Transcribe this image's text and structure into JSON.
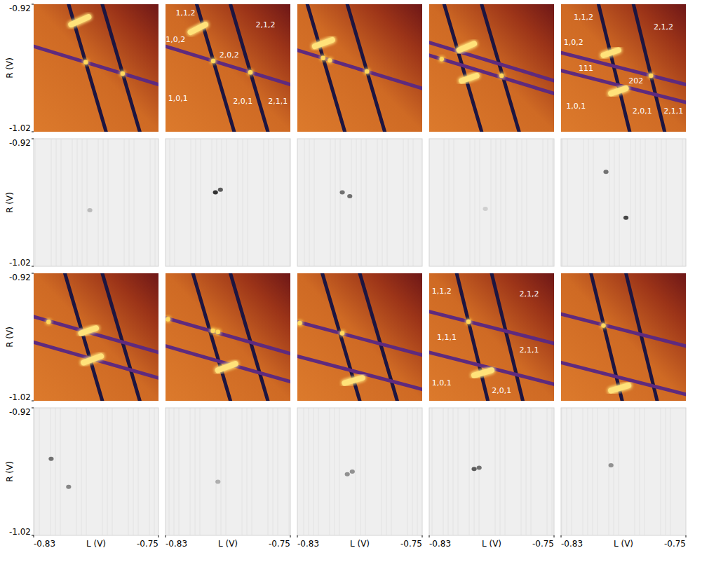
{
  "chart_data": [
    {
      "type": "heatmap",
      "color": "#dc7a2c",
      "xlim": [
        -0.83,
        -0.75
      ],
      "ylim": [
        -1.02,
        -0.92
      ],
      "tick_labels": "y",
      "yticks": [
        -1.02,
        -0.92
      ],
      "ylabel": "R (V)",
      "lines": [
        {
          "x": [
            -0.8076,
            -0.7836
          ],
          "y": [
            -0.92,
            -1.02
          ],
          "color": "#1d1540"
        },
        {
          "x": [
            -0.786,
            -0.762
          ],
          "y": [
            -0.92,
            -1.02
          ],
          "color": "#1d1540"
        },
        {
          "x": [
            -0.83,
            -0.75
          ],
          "y": [
            -0.953,
            -0.983
          ],
          "color": "#5e2a7e"
        }
      ],
      "spots": [
        {
          "x": [
            -0.806,
            -0.7948
          ],
          "y": [
            -0.936,
            -0.93
          ]
        }
      ],
      "dots": {
        "x": [
          -0.7966,
          -0.773
        ],
        "y": [
          -0.9655,
          -0.9744
        ]
      }
    },
    {
      "type": "heatmap",
      "color": "#dc7a2c",
      "xlim": [
        -0.83,
        -0.75
      ],
      "ylim": [
        -1.02,
        -0.92
      ],
      "tick_labels": false,
      "lines": [
        {
          "x": [
            -0.81,
            -0.786
          ],
          "y": [
            -0.92,
            -1.02
          ],
          "color": "#1d1540"
        },
        {
          "x": [
            -0.7884,
            -0.7644
          ],
          "y": [
            -0.92,
            -1.02
          ],
          "color": "#1d1540"
        },
        {
          "x": [
            -0.83,
            -0.75
          ],
          "y": [
            -0.953,
            -0.983
          ],
          "color": "#5e2a7e"
        }
      ],
      "spots": [
        {
          "x": [
            -0.814,
            -0.8044
          ],
          "y": [
            -0.942,
            -0.936
          ]
        }
      ],
      "dots": {
        "x": [
          -0.7994,
          -0.7756
        ],
        "y": [
          -0.9645,
          -0.9734
        ]
      },
      "annotations": [
        {
          "text": "1,1,2",
          "x": -0.8172,
          "y": -0.927
        },
        {
          "text": "1,0,2",
          "x": -0.8236,
          "y": -0.948
        },
        {
          "text": "2,1,2",
          "x": -0.766,
          "y": -0.936
        },
        {
          "text": "2,0,2",
          "x": -0.7892,
          "y": -0.96
        },
        {
          "text": "1,0,1",
          "x": -0.822,
          "y": -0.994
        },
        {
          "text": "2,0,1",
          "x": -0.7804,
          "y": -0.996
        },
        {
          "text": "2,1,1",
          "x": -0.758,
          "y": -0.996
        }
      ]
    },
    {
      "type": "heatmap",
      "color": "#dc7a2c",
      "xlim": [
        -0.83,
        -0.75
      ],
      "ylim": [
        -1.02,
        -0.92
      ],
      "tick_labels": false,
      "lines": [
        {
          "x": [
            -0.8236,
            -0.7996
          ],
          "y": [
            -0.92,
            -1.02
          ],
          "color": "#1d1540"
        },
        {
          "x": [
            -0.798,
            -0.774
          ],
          "y": [
            -0.92,
            -1.02
          ],
          "color": "#1d1540"
        },
        {
          "x": [
            -0.83,
            -0.75
          ],
          "y": [
            -0.956,
            -0.986
          ],
          "color": "#5e2a7e"
        }
      ],
      "spots": [
        {
          "x": [
            -0.8188,
            -0.8076
          ],
          "y": [
            -0.953,
            -0.948
          ]
        }
      ],
      "dots": {
        "x": [
          -0.8135,
          -0.8092,
          -0.7854
        ],
        "y": [
          -0.9622,
          -0.964,
          -0.9727
        ]
      }
    },
    {
      "type": "heatmap",
      "color": "#dc7a2c",
      "xlim": [
        -0.83,
        -0.75
      ],
      "ylim": [
        -1.02,
        -0.92
      ],
      "tick_labels": false,
      "lines": [
        {
          "x": [
            -0.8204,
            -0.7964
          ],
          "y": [
            -0.92,
            -1.02
          ],
          "color": "#1d1540"
        },
        {
          "x": [
            -0.7964,
            -0.7724
          ],
          "y": [
            -0.92,
            -1.02
          ],
          "color": "#1d1540"
        },
        {
          "x": [
            -0.83,
            -0.75
          ],
          "y": [
            -0.95,
            -0.98
          ],
          "color": "#5e2a7e"
        },
        {
          "x": [
            -0.83,
            -0.75
          ],
          "y": [
            -0.96,
            -0.99
          ],
          "color": "#5e2a7e"
        }
      ],
      "spots": [
        {
          "x": [
            -0.8108,
            -0.8012
          ],
          "y": [
            -0.956,
            -0.951
          ]
        },
        {
          "x": [
            -0.8092,
            -0.7996
          ],
          "y": [
            -0.98,
            -0.976
          ]
        }
      ],
      "dots": {
        "x": [
          -0.822,
          -0.7836
        ],
        "y": [
          -0.963,
          -0.976
        ]
      }
    },
    {
      "type": "heatmap",
      "color": "#dc7a2c",
      "xlim": [
        -0.83,
        -0.75
      ],
      "ylim": [
        -1.02,
        -0.92
      ],
      "tick_labels": false,
      "lines": [
        {
          "x": [
            -0.806,
            -0.786
          ],
          "y": [
            -0.92,
            -1.02
          ],
          "color": "#1d1540"
        },
        {
          "x": [
            -0.7836,
            -0.7636
          ],
          "y": [
            -0.92,
            -1.02
          ],
          "color": "#1d1540"
        },
        {
          "x": [
            -0.83,
            -0.75
          ],
          "y": [
            -0.958,
            -0.983
          ],
          "color": "#5e2a7e"
        },
        {
          "x": [
            -0.83,
            -0.75
          ],
          "y": [
            -0.972,
            -0.997
          ],
          "color": "#5e2a7e"
        }
      ],
      "spots": [
        {
          "x": [
            -0.8028,
            -0.7932
          ],
          "y": [
            -0.96,
            -0.956
          ]
        },
        {
          "x": [
            -0.798,
            -0.7884
          ],
          "y": [
            -0.99,
            -0.986
          ]
        }
      ],
      "dots": {
        "x": [
          -0.7724
        ],
        "y": [
          -0.976
        ]
      },
      "annotations": [
        {
          "text": "1,1,2",
          "x": -0.8156,
          "y": -0.93
        },
        {
          "text": "1,0,2",
          "x": -0.822,
          "y": -0.95
        },
        {
          "text": "2,1,2",
          "x": -0.7644,
          "y": -0.938
        },
        {
          "text": "111",
          "x": -0.814,
          "y": -0.97
        },
        {
          "text": "202",
          "x": -0.782,
          "y": -0.98
        },
        {
          "text": "1,0,1",
          "x": -0.8204,
          "y": -1.0
        },
        {
          "text": "2,0,1",
          "x": -0.778,
          "y": -1.004
        },
        {
          "text": "2,1,1",
          "x": -0.758,
          "y": -1.004
        }
      ]
    },
    {
      "type": "heatmap",
      "color": "#efefef",
      "xlim": [
        -0.83,
        -0.75
      ],
      "ylim": [
        -1.02,
        -0.92
      ],
      "tick_labels": "y",
      "yticks": [
        -1.02,
        -0.92
      ],
      "ylabel": "R (V)",
      "points": {
        "x": [
          -0.794
        ],
        "y": [
          -0.976
        ],
        "intensity": [
          0.25
        ]
      }
    },
    {
      "type": "heatmap",
      "color": "#efefef",
      "xlim": [
        -0.83,
        -0.75
      ],
      "ylim": [
        -1.02,
        -0.92
      ],
      "tick_labels": false,
      "points": {
        "x": [
          -0.798,
          -0.7948
        ],
        "y": [
          -0.962,
          -0.96
        ],
        "intensity": [
          0.9,
          0.7
        ]
      }
    },
    {
      "type": "heatmap",
      "color": "#efefef",
      "xlim": [
        -0.83,
        -0.75
      ],
      "ylim": [
        -1.02,
        -0.92
      ],
      "tick_labels": false,
      "points": {
        "x": [
          -0.8012,
          -0.7964
        ],
        "y": [
          -0.962,
          -0.965
        ],
        "intensity": [
          0.6,
          0.6
        ]
      }
    },
    {
      "type": "heatmap",
      "color": "#efefef",
      "xlim": [
        -0.83,
        -0.75
      ],
      "ylim": [
        -1.02,
        -0.92
      ],
      "tick_labels": false,
      "points": {
        "x": [
          -0.794
        ],
        "y": [
          -0.975
        ],
        "intensity": [
          0.15
        ]
      }
    },
    {
      "type": "heatmap",
      "color": "#efefef",
      "xlim": [
        -0.83,
        -0.75
      ],
      "ylim": [
        -1.02,
        -0.92
      ],
      "tick_labels": false,
      "points": {
        "x": [
          -0.8012,
          -0.7884
        ],
        "y": [
          -0.946,
          -0.982
        ],
        "intensity": [
          0.6,
          0.8
        ]
      }
    },
    {
      "type": "heatmap",
      "color": "#dc7a2c",
      "xlim": [
        -0.83,
        -0.75
      ],
      "ylim": [
        -1.02,
        -0.92
      ],
      "tick_labels": "y",
      "yticks": [
        -1.02,
        -0.92
      ],
      "ylabel": "R (V)",
      "lines": [
        {
          "x": [
            -0.81,
            -0.786
          ],
          "y": [
            -0.92,
            -1.02
          ],
          "color": "#1d1540"
        },
        {
          "x": [
            -0.786,
            -0.762
          ],
          "y": [
            -0.92,
            -1.02
          ],
          "color": "#1d1540"
        },
        {
          "x": [
            -0.83,
            -0.75
          ],
          "y": [
            -0.954,
            -0.982
          ],
          "color": "#5e2a7e"
        },
        {
          "x": [
            -0.83,
            -0.75
          ],
          "y": [
            -0.974,
            -1.002
          ],
          "color": "#5e2a7e"
        }
      ],
      "spots": [
        {
          "x": [
            -0.7996,
            -0.79
          ],
          "y": [
            -0.967,
            -0.963
          ]
        },
        {
          "x": [
            -0.798,
            -0.7868
          ],
          "y": [
            -0.99,
            -0.985
          ]
        }
      ],
      "dots": {
        "x": [
          -0.8204
        ],
        "y": [
          -0.958
        ]
      }
    },
    {
      "type": "heatmap",
      "color": "#dc7a2c",
      "xlim": [
        -0.83,
        -0.75
      ],
      "ylim": [
        -1.02,
        -0.92
      ],
      "tick_labels": false,
      "lines": [
        {
          "x": [
            -0.8124,
            -0.7884
          ],
          "y": [
            -0.92,
            -1.02
          ],
          "color": "#1d1540"
        },
        {
          "x": [
            -0.7884,
            -0.7644
          ],
          "y": [
            -0.92,
            -1.02
          ],
          "color": "#1d1540"
        },
        {
          "x": [
            -0.83,
            -0.75
          ],
          "y": [
            -0.955,
            -0.983
          ],
          "color": "#5e2a7e"
        },
        {
          "x": [
            -0.83,
            -0.75
          ],
          "y": [
            -0.977,
            -1.005
          ],
          "color": "#5e2a7e"
        }
      ],
      "spots": [
        {
          "x": [
            -0.7964,
            -0.7852
          ],
          "y": [
            -0.996,
            -0.991
          ]
        }
      ],
      "dots": {
        "x": [
          -0.8284,
          -0.7996,
          -0.7964
        ],
        "y": [
          -0.956,
          -0.965,
          -0.966
        ]
      }
    },
    {
      "type": "heatmap",
      "color": "#dc7a2c",
      "xlim": [
        -0.83,
        -0.75
      ],
      "ylim": [
        -1.02,
        -0.92
      ],
      "tick_labels": false,
      "lines": [
        {
          "x": [
            -0.814,
            -0.79
          ],
          "y": [
            -0.92,
            -1.02
          ],
          "color": "#1d1540"
        },
        {
          "x": [
            -0.79,
            -0.766
          ],
          "y": [
            -0.92,
            -1.02
          ],
          "color": "#1d1540"
        },
        {
          "x": [
            -0.83,
            -0.75
          ],
          "y": [
            -0.958,
            -0.984
          ],
          "color": "#5e2a7e"
        },
        {
          "x": [
            -0.83,
            -0.75
          ],
          "y": [
            -0.985,
            -1.011
          ],
          "color": "#5e2a7e"
        }
      ],
      "spots": [
        {
          "x": [
            -0.7996,
            -0.7884
          ],
          "y": [
            -1.006,
            -1.002
          ]
        }
      ],
      "dots": {
        "x": [
          -0.8284,
          -0.8012
        ],
        "y": [
          -0.959,
          -0.967
        ]
      }
    },
    {
      "type": "heatmap",
      "color": "#dc7a2c",
      "xlim": [
        -0.83,
        -0.75
      ],
      "ylim": [
        -1.02,
        -0.92
      ],
      "tick_labels": false,
      "lines": [
        {
          "x": [
            -0.8124,
            -0.7924
          ],
          "y": [
            -0.92,
            -1.02
          ],
          "color": "#1d1540"
        },
        {
          "x": [
            -0.79,
            -0.77
          ],
          "y": [
            -0.92,
            -1.02
          ],
          "color": "#1d1540"
        },
        {
          "x": [
            -0.83,
            -0.75
          ],
          "y": [
            -0.95,
            -0.975
          ],
          "color": "#5e2a7e"
        },
        {
          "x": [
            -0.83,
            -0.75
          ],
          "y": [
            -0.982,
            -1.007
          ],
          "color": "#5e2a7e"
        }
      ],
      "spots": [
        {
          "x": [
            -0.8012,
            -0.79
          ],
          "y": [
            -1.0,
            -0.996
          ]
        }
      ],
      "dots": {
        "x": [
          -0.8048
        ],
        "y": [
          -0.9579
        ]
      },
      "annotations": [
        {
          "text": "1,1,2",
          "x": -0.822,
          "y": -0.934
        },
        {
          "text": "2,1,2",
          "x": -0.766,
          "y": -0.936
        },
        {
          "text": "1,1,1",
          "x": -0.8188,
          "y": -0.97
        },
        {
          "text": "2,1,1",
          "x": -0.766,
          "y": -0.98
        },
        {
          "text": "1,0,1",
          "x": -0.822,
          "y": -1.006
        },
        {
          "text": "2,0,1",
          "x": -0.7836,
          "y": -1.012
        }
      ]
    },
    {
      "type": "heatmap",
      "color": "#dc7a2c",
      "xlim": [
        -0.83,
        -0.75
      ],
      "ylim": [
        -1.02,
        -0.92
      ],
      "tick_labels": false,
      "lines": [
        {
          "x": [
            -0.8108,
            -0.7908
          ],
          "y": [
            -0.92,
            -1.02
          ],
          "color": "#1d1540"
        },
        {
          "x": [
            -0.7884,
            -0.7684
          ],
          "y": [
            -0.92,
            -1.02
          ],
          "color": "#1d1540"
        },
        {
          "x": [
            -0.83,
            -0.75
          ],
          "y": [
            -0.952,
            -0.977
          ],
          "color": "#5e2a7e"
        },
        {
          "x": [
            -0.83,
            -0.75
          ],
          "y": [
            -0.99,
            -1.015
          ],
          "color": "#5e2a7e"
        }
      ],
      "spots": [
        {
          "x": [
            -0.798,
            -0.7868
          ],
          "y": [
            -1.012,
            -1.008
          ]
        }
      ],
      "dots": {
        "x": [
          -0.8028
        ],
        "y": [
          -0.961
        ]
      }
    },
    {
      "type": "heatmap",
      "color": "#efefef",
      "xlim": [
        -0.83,
        -0.75
      ],
      "ylim": [
        -1.02,
        -0.92
      ],
      "tick_labels": true,
      "xticks": [
        -0.83,
        -0.75
      ],
      "xlabel": "L (V)",
      "yticks": [
        -1.02,
        -0.92
      ],
      "ylabel": "R (V)",
      "points": {
        "x": [
          -0.8188,
          -0.8076
        ],
        "y": [
          -0.96,
          -0.982
        ],
        "intensity": [
          0.6,
          0.5
        ]
      }
    },
    {
      "type": "heatmap",
      "color": "#efefef",
      "xlim": [
        -0.83,
        -0.75
      ],
      "ylim": [
        -1.02,
        -0.92
      ],
      "tick_labels": "x",
      "xticks": [
        -0.83,
        -0.75
      ],
      "xlabel": "L (V)",
      "points": {
        "x": [
          -0.7964
        ],
        "y": [
          -0.978
        ],
        "intensity": [
          0.3
        ]
      }
    },
    {
      "type": "heatmap",
      "color": "#efefef",
      "xlim": [
        -0.83,
        -0.75
      ],
      "ylim": [
        -1.02,
        -0.92
      ],
      "tick_labels": "x",
      "xticks": [
        -0.83,
        -0.75
      ],
      "xlabel": "L (V)",
      "points": {
        "x": [
          -0.798,
          -0.7948
        ],
        "y": [
          -0.972,
          -0.97
        ],
        "intensity": [
          0.45,
          0.45
        ]
      }
    },
    {
      "type": "heatmap",
      "color": "#efefef",
      "xlim": [
        -0.83,
        -0.75
      ],
      "ylim": [
        -1.02,
        -0.92
      ],
      "tick_labels": "x",
      "xticks": [
        -0.83,
        -0.75
      ],
      "xlabel": "L (V)",
      "points": {
        "x": [
          -0.8012,
          -0.798
        ],
        "y": [
          -0.968,
          -0.967
        ],
        "intensity": [
          0.7,
          0.6
        ]
      }
    },
    {
      "type": "heatmap",
      "color": "#efefef",
      "xlim": [
        -0.83,
        -0.75
      ],
      "ylim": [
        -1.02,
        -0.92
      ],
      "tick_labels": "x",
      "xticks": [
        -0.83,
        -0.75
      ],
      "xlabel": "L (V)",
      "points": {
        "x": [
          -0.798
        ],
        "y": [
          -0.965
        ],
        "intensity": [
          0.45
        ]
      }
    }
  ]
}
